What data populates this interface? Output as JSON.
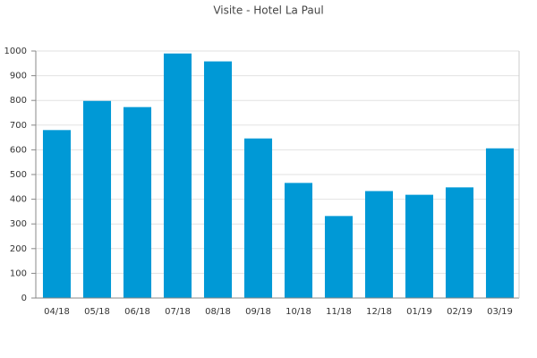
{
  "chart_data": {
    "type": "bar",
    "title": "Visite - Hotel La Paul",
    "categories": [
      "04/18",
      "05/18",
      "06/18",
      "07/18",
      "08/18",
      "09/18",
      "10/18",
      "11/18",
      "12/18",
      "01/19",
      "02/19",
      "03/19"
    ],
    "values": [
      680,
      798,
      773,
      990,
      958,
      646,
      466,
      332,
      433,
      418,
      448,
      606
    ],
    "color": "#0099d6",
    "ylim": [
      0,
      1000
    ],
    "yticks": [
      0,
      100,
      200,
      300,
      400,
      500,
      600,
      700,
      800,
      900,
      1000
    ],
    "grid": true
  }
}
